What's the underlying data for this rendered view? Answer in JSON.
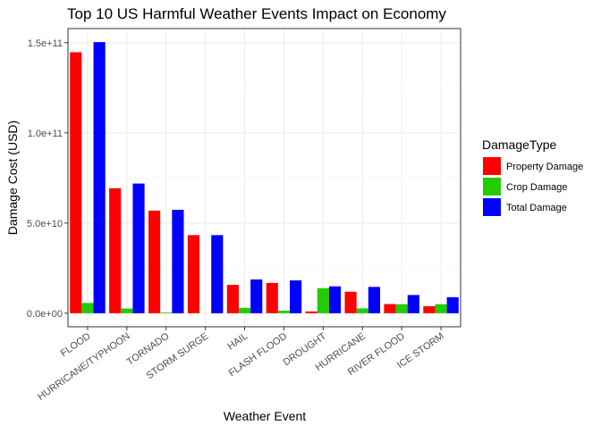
{
  "chart_data": {
    "type": "bar",
    "title": "Top 10 US Harmful Weather Events Impact on Economy",
    "xlabel": "Weather Event",
    "ylabel": "Damage Cost (USD)",
    "categories": [
      "FLOOD",
      "HURRICANE/TYPHOON",
      "TORNADO",
      "STORM SURGE",
      "HAIL",
      "FLASH FLOOD",
      "DROUGHT",
      "HURRICANE",
      "RIVER FLOOD",
      "ICE STORM"
    ],
    "series": [
      {
        "name": "Property Damage",
        "color": "#ff0000",
        "values": [
          144700000000,
          69300000000,
          56900000000,
          43300000000,
          15700000000,
          16800000000,
          1000000000,
          11900000000,
          5100000000,
          3900000000
        ]
      },
      {
        "name": "Crop Damage",
        "color": "#22cc00",
        "values": [
          5700000000,
          2600000000,
          400000000,
          0,
          3000000000,
          1400000000,
          13900000000,
          2700000000,
          5000000000,
          5000000000
        ]
      },
      {
        "name": "Total Damage",
        "color": "#0000ff",
        "values": [
          150300000000,
          71900000000,
          57300000000,
          43300000000,
          18700000000,
          18200000000,
          14900000000,
          14600000000,
          10100000000,
          8900000000
        ]
      }
    ],
    "yticks": [
      {
        "value": 0,
        "label": "0.0e+00"
      },
      {
        "value": 50000000000,
        "label": "5.0e+10"
      },
      {
        "value": 100000000000,
        "label": "1.0e+11"
      },
      {
        "value": 150000000000,
        "label": "1.5e+11"
      }
    ],
    "ylim": [
      -7500000000,
      157800000000
    ],
    "grid": true,
    "legend": {
      "title": "DamageType",
      "placement": "right"
    }
  }
}
